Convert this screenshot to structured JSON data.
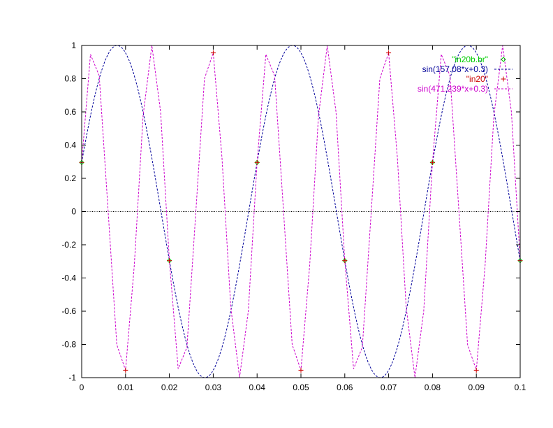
{
  "chart_data": {
    "type": "line",
    "title": "",
    "xlabel": "",
    "ylabel": "",
    "xlim": [
      0,
      0.1
    ],
    "ylim": [
      -1,
      1
    ],
    "xticks": [
      "0",
      "0.01",
      "0.02",
      "0.03",
      "0.04",
      "0.05",
      "0.06",
      "0.07",
      "0.08",
      "0.09",
      "0.1"
    ],
    "yticks": [
      "1",
      "0.8",
      "0.6",
      "0.4",
      "0.2",
      "0",
      "-0.2",
      "-0.4",
      "-0.6",
      "-0.8",
      "-1"
    ],
    "grid": false,
    "zero_line": true,
    "legend_position": "top-right",
    "series": [
      {
        "name": "\"in20b.br\"",
        "style": "points",
        "marker": "diamond",
        "color": "#00cc00",
        "x": [
          0,
          0.02,
          0.04,
          0.06,
          0.08,
          0.1
        ],
        "y": [
          0.2955,
          -0.2955,
          0.2955,
          -0.2955,
          0.2955,
          -0.2955
        ]
      },
      {
        "name": "sin(157.08*x+0.3)",
        "style": "line",
        "dash": "3,2",
        "color": "#000099",
        "function": {
          "amplitude": 1,
          "frequency": 157.08,
          "phase": 0.3
        }
      },
      {
        "name": "\"in20\"",
        "style": "points",
        "marker": "plus",
        "color": "#cc0000",
        "x": [
          0,
          0.01,
          0.02,
          0.03,
          0.04,
          0.05,
          0.06,
          0.07,
          0.08,
          0.09,
          0.1
        ],
        "y": [
          0.2955,
          -0.9553,
          -0.2955,
          0.9553,
          0.2955,
          -0.9553,
          -0.2955,
          0.9553,
          0.2955,
          -0.9553,
          -0.2955
        ]
      },
      {
        "name": "sin(471.239*x+0.3)",
        "style": "line",
        "dash": "3,2",
        "color": "#cc00cc",
        "function": {
          "amplitude": 1,
          "frequency": 471.239,
          "phase": 0.3
        },
        "sample_step": 0.002
      }
    ]
  }
}
